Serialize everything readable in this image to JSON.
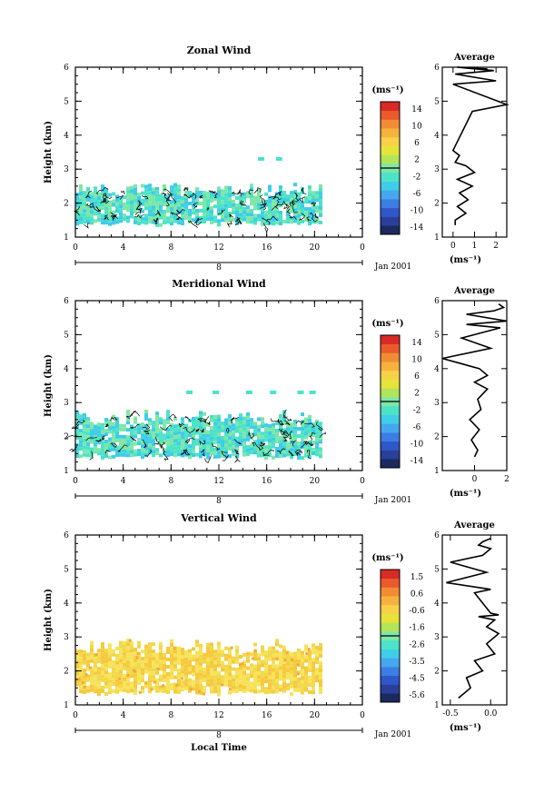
{
  "palette": [
    "#1b2a5e",
    "#2a3f9a",
    "#2f57c8",
    "#3b7ee4",
    "#46a7ef",
    "#3fcde8",
    "#4ce3c8",
    "#7ee7a8",
    "#b2e55a",
    "#e6e43a",
    "#f7d14a",
    "#f6b23e",
    "#f28c34",
    "#ea5a2c",
    "#d92a24"
  ],
  "panels": [
    {
      "key": "zonal",
      "title": "Zonal Wind",
      "ylabel": "Height (km)",
      "ylim": [
        1,
        6
      ],
      "y_ticks": [
        "1",
        "2",
        "3",
        "4",
        "5",
        "6"
      ],
      "xlim": [
        0,
        24
      ],
      "x_ticks": [
        "0",
        "4",
        "8",
        "12",
        "16",
        "20",
        "0"
      ],
      "date_label": "8",
      "month_label": "Jan 2001",
      "x_axis_title": "",
      "colorbar_unit": "(ms⁻¹)",
      "colorbar_ticks": [
        "14",
        "10",
        "6",
        "2",
        "-2",
        "-6",
        "-10",
        "-14"
      ],
      "fill_colors": [
        "#4ce3c8",
        "#7ee7a8",
        "#3fcde8"
      ],
      "avg_title": "Average",
      "avg_xlabel": "(ms⁻¹)",
      "avg_x_ticks": [
        "0",
        "1",
        "2"
      ]
    },
    {
      "key": "meridional",
      "title": "Meridional Wind",
      "ylabel": "Height (km)",
      "ylim": [
        1,
        6
      ],
      "y_ticks": [
        "1",
        "2",
        "3",
        "4",
        "5",
        "6"
      ],
      "xlim": [
        0,
        24
      ],
      "x_ticks": [
        "0",
        "4",
        "8",
        "12",
        "16",
        "20",
        "0"
      ],
      "date_label": "8",
      "month_label": "Jan 2001",
      "x_axis_title": "",
      "colorbar_unit": "(ms⁻¹)",
      "colorbar_ticks": [
        "14",
        "10",
        "6",
        "2",
        "-2",
        "-6",
        "-10",
        "-14"
      ],
      "fill_colors": [
        "#4ce3c8",
        "#7ee7a8",
        "#3fcde8"
      ],
      "avg_title": "Average",
      "avg_xlabel": "(ms⁻¹)",
      "avg_x_ticks": [
        "0",
        "2"
      ]
    },
    {
      "key": "vertical",
      "title": "Vertical Wind",
      "ylabel": "Height (km)",
      "ylim": [
        1,
        6
      ],
      "y_ticks": [
        "1",
        "2",
        "3",
        "4",
        "5",
        "6"
      ],
      "xlim": [
        0,
        24
      ],
      "x_ticks": [
        "0",
        "4",
        "8",
        "12",
        "16",
        "20",
        "0"
      ],
      "date_label": "8",
      "month_label": "Jan 2001",
      "x_axis_title": "Local Time",
      "colorbar_unit": "(ms⁻¹)",
      "colorbar_ticks": [
        "1.5",
        "0.6",
        "-0.6",
        "-1.6",
        "-2.6",
        "-3.5",
        "-4.5",
        "-5.6"
      ],
      "fill_colors": [
        "#f7e35a",
        "#f6c93e",
        "#f2d84a"
      ],
      "avg_title": "Average",
      "avg_xlabel": "(ms⁻¹)",
      "avg_x_ticks": [
        "-0.5",
        "0.0"
      ]
    }
  ],
  "chart_data": [
    {
      "type": "heatmap",
      "title": "Zonal Wind",
      "ylabel": "Height (km)",
      "xlim": [
        0,
        24
      ],
      "ylim": [
        1,
        6
      ],
      "data_time_range_hours": [
        0,
        20.5
      ],
      "data_height_range_km": [
        1.4,
        2.6
      ],
      "sparse_echoes": [
        {
          "x": 15.5,
          "y": 3.3
        },
        {
          "x": 17,
          "y": 3.3
        }
      ],
      "colorbar_range": [
        -14,
        14
      ],
      "dominant_value_range": [
        -2,
        2
      ]
    },
    {
      "type": "line",
      "title": "Average",
      "xlabel": "(ms⁻¹)",
      "xlim": [
        -0.5,
        2.5
      ],
      "ylim": [
        1,
        6
      ],
      "x": [
        0.1,
        0.1,
        0.6,
        0.2,
        0.7,
        0.3,
        0.9,
        0.2,
        1.0,
        0.6,
        0.1,
        0.3,
        0.0,
        0.9,
        2.5,
        0.0,
        2.0,
        0.1,
        1.9,
        0.2,
        1.6
      ],
      "y": [
        1.35,
        1.5,
        1.7,
        1.9,
        2.1,
        2.3,
        2.5,
        2.7,
        2.9,
        3.1,
        3.2,
        3.4,
        3.55,
        4.7,
        4.9,
        5.5,
        5.6,
        5.8,
        5.9,
        6.0,
        5.95
      ]
    },
    {
      "type": "heatmap",
      "title": "Meridional Wind",
      "ylabel": "Height (km)",
      "xlim": [
        0,
        24
      ],
      "ylim": [
        1,
        6
      ],
      "data_time_range_hours": [
        0,
        20.5
      ],
      "data_height_range_km": [
        1.4,
        2.8
      ],
      "sparse_echoes": [
        {
          "x": 9.5,
          "y": 3.3
        },
        {
          "x": 11.7,
          "y": 3.3
        },
        {
          "x": 14.5,
          "y": 3.3
        },
        {
          "x": 16.5,
          "y": 3.3
        },
        {
          "x": 18.8,
          "y": 3.3
        },
        {
          "x": 19.8,
          "y": 3.3
        }
      ],
      "colorbar_range": [
        -14,
        14
      ],
      "dominant_value_range": [
        -2,
        2
      ]
    },
    {
      "type": "line",
      "title": "Average",
      "xlabel": "(ms⁻¹)",
      "xlim": [
        -2,
        2
      ],
      "ylim": [
        1,
        6
      ],
      "x": [
        0.0,
        0.2,
        -0.2,
        0.3,
        -0.3,
        0.4,
        0.2,
        0.8,
        0.0,
        0.8,
        0.3,
        -2.0,
        1.0,
        -0.8,
        1.6,
        -0.5,
        2.0,
        -0.5,
        1.2,
        1.8,
        1.5
      ],
      "y": [
        1.4,
        1.6,
        1.9,
        2.2,
        2.5,
        2.8,
        3.1,
        3.4,
        3.6,
        3.8,
        4.0,
        4.3,
        4.6,
        4.9,
        5.2,
        5.3,
        5.4,
        5.6,
        5.7,
        5.8,
        5.9
      ]
    },
    {
      "type": "heatmap",
      "title": "Vertical Wind",
      "ylabel": "Height (km)",
      "xlim": [
        0,
        24
      ],
      "ylim": [
        1,
        6
      ],
      "data_time_range_hours": [
        0,
        20.5
      ],
      "data_height_range_km": [
        1.35,
        2.95
      ],
      "colorbar_range": [
        -5.6,
        1.5
      ],
      "dominant_value_range": [
        -0.6,
        1.5
      ]
    },
    {
      "type": "line",
      "title": "Average",
      "xlabel": "(ms⁻¹)",
      "xlim": [
        -0.6,
        0.2
      ],
      "ylim": [
        1,
        6
      ],
      "x": [
        -0.4,
        -0.25,
        -0.3,
        -0.1,
        -0.2,
        0.05,
        -0.05,
        0.1,
        -0.05,
        0.05,
        -0.15,
        0.1,
        0.0,
        -0.2,
        0.0,
        -0.55,
        -0.05,
        -0.5,
        -0.1,
        0.0,
        -0.15,
        -0.1,
        0.0
      ],
      "y": [
        1.2,
        1.5,
        1.8,
        2.0,
        2.3,
        2.5,
        2.8,
        3.1,
        3.3,
        3.5,
        3.6,
        3.65,
        3.7,
        4.3,
        4.4,
        4.6,
        4.9,
        5.2,
        5.4,
        5.6,
        5.7,
        5.8,
        5.9
      ]
    }
  ]
}
